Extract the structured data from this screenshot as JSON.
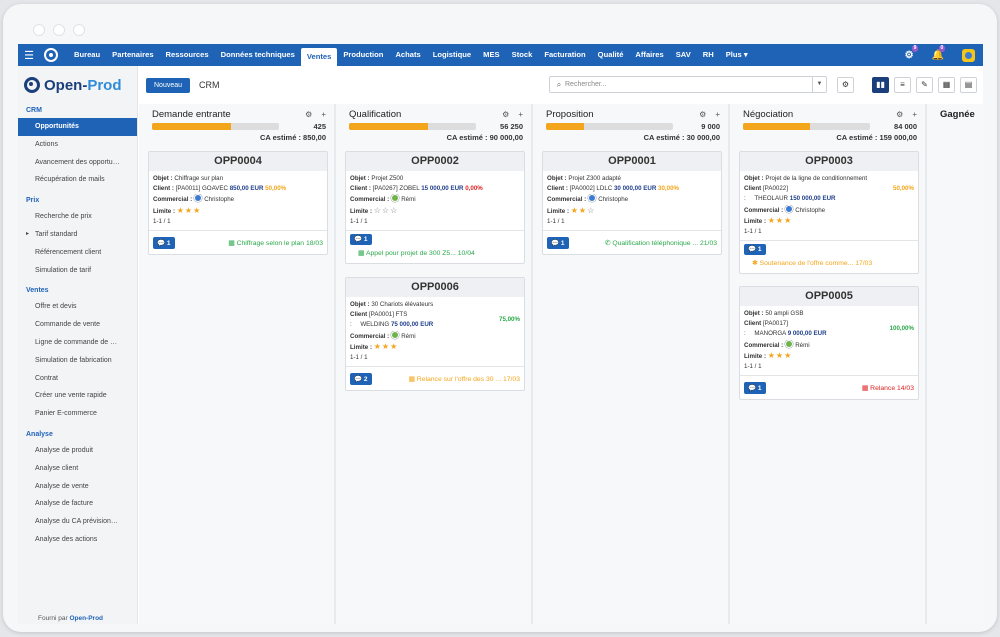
{
  "nav": {
    "items": [
      "Bureau",
      "Partenaires",
      "Ressources",
      "Données techniques",
      "Ventes",
      "Production",
      "Achats",
      "Logistique",
      "MES",
      "Stock",
      "Facturation",
      "Qualité",
      "Affaires",
      "SAV",
      "RH",
      "Plus ▾"
    ],
    "active_index": 4,
    "gear_badge": "9",
    "bell_badge": "0"
  },
  "brand": {
    "name_a": "Open-",
    "name_b": "Prod"
  },
  "sidebar": {
    "sections": [
      {
        "title": "CRM",
        "items": [
          "Opportunités",
          "Actions",
          "Avancement des opportuni...",
          "Récupération de mails"
        ]
      },
      {
        "title": "Prix",
        "items": [
          "Recherche de prix",
          "Tarif standard",
          "Référencement client",
          "Simulation de tarif"
        ]
      },
      {
        "title": "Ventes",
        "items": [
          "Offre et devis",
          "Commande de vente",
          "Ligne de commande de ve...",
          "Simulation de fabrication",
          "Contrat",
          "Créer une vente rapide",
          "Panier E-commerce"
        ]
      },
      {
        "title": "Analyse",
        "items": [
          "Analyse de produit",
          "Analyse client",
          "Analyse de vente",
          "Analyse de facture",
          "Analyse du CA prévisionnel",
          "Analyse des actions"
        ]
      }
    ],
    "footer_prefix": "Fourni par",
    "footer_brand": "Open-Prod"
  },
  "toolbar": {
    "new_label": "Nouveau",
    "breadcrumb": "CRM",
    "search_placeholder": "Rechercher..."
  },
  "columns": [
    {
      "title": "Demande entrante",
      "count": "425",
      "ca": "CA estimé : 850,00",
      "progress": 0.62
    },
    {
      "title": "Qualification",
      "count": "56 250",
      "ca": "CA estimé : 90 000,00",
      "progress": 0.62
    },
    {
      "title": "Proposition",
      "count": "9 000",
      "ca": "CA estimé : 30 000,00",
      "progress": 0.3
    },
    {
      "title": "Négociation",
      "count": "84 000",
      "ca": "CA estimé : 159 000,00",
      "progress": 0.53
    },
    {
      "title": "Gagnée"
    }
  ],
  "cards": {
    "opp4": {
      "title": "OPP0004",
      "objet_label": "Objet :",
      "objet": "Chiffrage sur plan",
      "client_label": "Client :",
      "client": "[PA0011] GOAVEC",
      "amount": "850,00 EUR",
      "pct": "50,00%",
      "commercial_label": "Commercial :",
      "commercial": "Christophe",
      "limite_label": "Limite :",
      "stars": 3,
      "pager": "1-1 / 1",
      "chip": "1",
      "action": "Chiffrage selon le plan 18/03"
    },
    "opp2": {
      "title": "OPP0002",
      "objet_label": "Objet :",
      "objet": "Projet Z500",
      "client_label": "Client :",
      "client": "[PA0267] ZOBEL",
      "amount": "15 000,00 EUR",
      "pct": "0,00%",
      "commercial_label": "Commercial :",
      "commercial": "Rémi",
      "limite_label": "Limite :",
      "stars": 0,
      "pager": "1-1 / 1",
      "chip": "1",
      "action": "Appel pour projet de 300 Z5... 10/04"
    },
    "opp6": {
      "title": "OPP0006",
      "objet_label": "Objet :",
      "objet": "30 Chariots élévateurs",
      "client_label": "Client",
      "client_a": "[PA0001] FTS",
      "client_b": "WELDING",
      "amount": "75 000,00 EUR",
      "pct": "75,00%",
      "commercial_label": "Commercial :",
      "commercial": "Rémi",
      "limite_label": "Limite :",
      "stars": 3,
      "pager": "1-1 / 1",
      "chip": "2",
      "action": "Relance sur l'offre des 30 ... 17/03"
    },
    "opp1": {
      "title": "OPP0001",
      "objet_label": "Objet :",
      "objet": "Projet Z300 adapté",
      "client_label": "Client :",
      "client": "[PA0002] LDLC",
      "amount": "30 000,00 EUR",
      "pct": "30,00%",
      "commercial_label": "Commercial :",
      "commercial": "Christophe",
      "limite_label": "Limite :",
      "stars": 2,
      "pager": "1-1 / 1",
      "chip": "1",
      "action": "Qualification téléphonique ... 21/03"
    },
    "opp3": {
      "title": "OPP0003",
      "objet_label": "Objet :",
      "objet": "Projet de la ligne de conditionnement",
      "client_label": "Client",
      "client_a": "[PA0022]",
      "client_b": "THEOLAUR",
      "amount": "150 000,00 EUR",
      "pct": "50,00%",
      "commercial_label": "Commercial :",
      "commercial": "Christophe",
      "limite_label": "Limite :",
      "stars": 3,
      "pager": "1-1 / 1",
      "chip": "1",
      "action": "Soutenance de l'offre comme... 17/03"
    },
    "opp5": {
      "title": "OPP0005",
      "objet_label": "Objet :",
      "objet": "50 ampli GSB",
      "client_label": "Client",
      "client_a": "[PA0017]",
      "client_b": "MANORGA",
      "amount": "9 000,00 EUR",
      "pct": "100,00%",
      "commercial_label": "Commercial :",
      "commercial": "Rémi",
      "limite_label": "Limite :",
      "stars": 3,
      "pager": "1-1 / 1",
      "chip": "1",
      "action": "Relance 14/03"
    }
  },
  "colors": {
    "primary": "#1f63b6",
    "progress": "#f3a51b",
    "green": "#2aa84a",
    "red": "#dd2222"
  }
}
